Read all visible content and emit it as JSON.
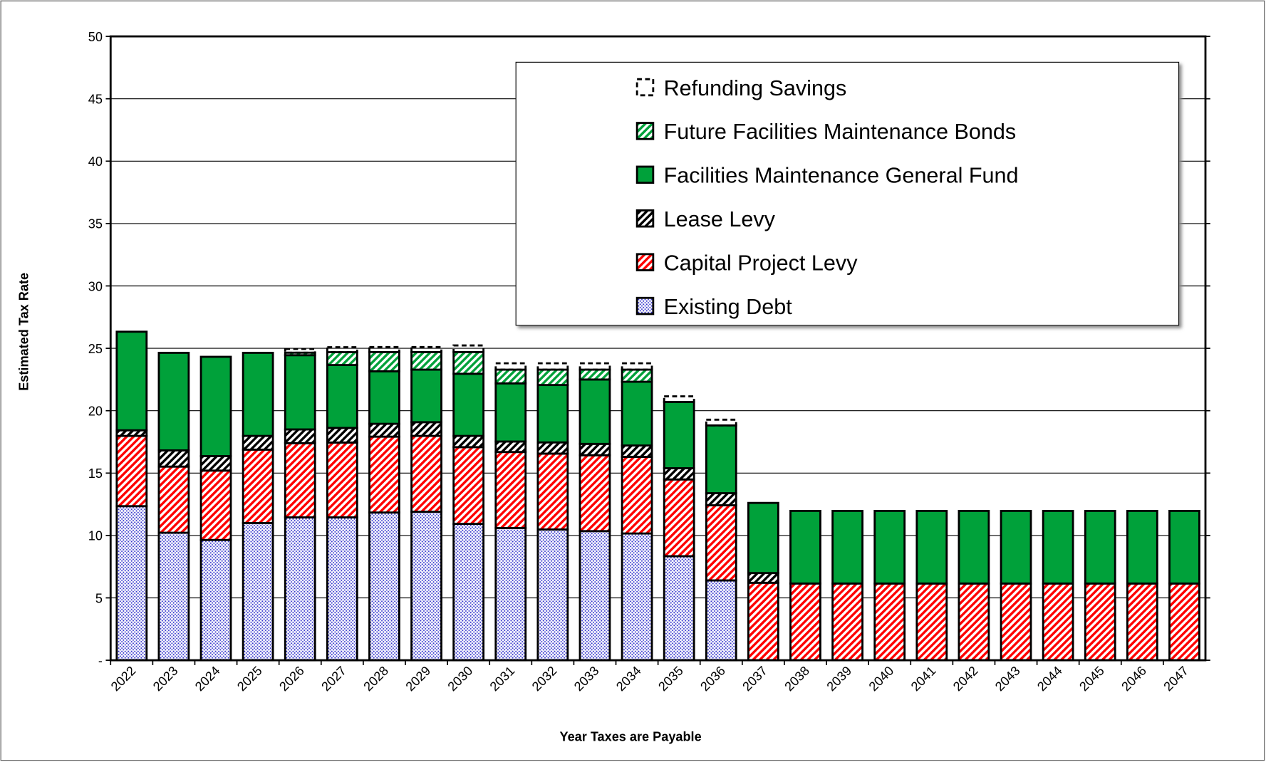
{
  "chart_data": {
    "type": "stacked_bar",
    "x_label": "Year Taxes are Payable",
    "y_label": "Estimated Tax Rate",
    "categories": [
      "2022",
      "2023",
      "2024",
      "2025",
      "2026",
      "2027",
      "2028",
      "2029",
      "2030",
      "2031",
      "2032",
      "2033",
      "2034",
      "2035",
      "2036",
      "2037",
      "2038",
      "2039",
      "2040",
      "2041",
      "2042",
      "2043",
      "2044",
      "2045",
      "2046",
      "2047"
    ],
    "ylim": [
      0,
      50
    ],
    "yticks": [
      {
        "value": 0,
        "label": "-"
      },
      5,
      10,
      15,
      20,
      25,
      30,
      35,
      40,
      45,
      50
    ],
    "grid": true,
    "legend": "upper right",
    "series": [
      {
        "name": "Existing Debt",
        "color": "#3333cc",
        "pattern": "dots",
        "values": [
          12.35,
          10.22,
          9.64,
          11.0,
          11.45,
          11.45,
          11.84,
          11.9,
          10.93,
          10.6,
          10.48,
          10.35,
          10.16,
          8.34,
          6.4,
          0,
          0,
          0,
          0,
          0,
          0,
          0,
          0,
          0,
          0,
          0
        ]
      },
      {
        "name": "Capital Project Levy",
        "color": "#ff0000",
        "pattern": "hatch",
        "values": [
          5.63,
          5.3,
          5.56,
          5.88,
          5.95,
          6.0,
          6.08,
          6.08,
          6.15,
          6.09,
          6.08,
          6.08,
          6.14,
          6.15,
          6.02,
          6.21,
          6.15,
          6.15,
          6.15,
          6.15,
          6.15,
          6.15,
          6.15,
          6.15,
          6.15,
          6.15
        ]
      },
      {
        "name": "Lease Levy",
        "color": "#000000",
        "pattern": "hatch",
        "values": [
          0.45,
          1.3,
          1.16,
          1.1,
          1.1,
          1.17,
          1.03,
          1.1,
          0.9,
          0.84,
          0.9,
          0.91,
          0.91,
          0.9,
          0.97,
          0.78,
          0,
          0,
          0,
          0,
          0,
          0,
          0,
          0,
          0,
          0
        ]
      },
      {
        "name": "Facilities Maintenance General Fund",
        "color": "#00a13a",
        "pattern": "solid",
        "values": [
          7.9,
          7.82,
          7.96,
          6.66,
          5.95,
          5.04,
          4.21,
          4.21,
          4.98,
          4.66,
          4.6,
          5.16,
          5.11,
          5.31,
          5.43,
          5.62,
          5.82,
          5.82,
          5.82,
          5.82,
          5.82,
          5.82,
          5.82,
          5.82,
          5.82,
          5.82
        ]
      },
      {
        "name": "Future Facilities Maintenance Bonds",
        "color": "#00a13a",
        "pattern": "hatch",
        "values": [
          0,
          0,
          0,
          0,
          0.2,
          1.03,
          1.54,
          1.41,
          1.74,
          1.1,
          1.23,
          0.79,
          0.97,
          0,
          0,
          0,
          0,
          0,
          0,
          0,
          0,
          0,
          0,
          0,
          0,
          0
        ]
      },
      {
        "name": "Refunding Savings",
        "color": "#000000",
        "pattern": "outline",
        "values": [
          0,
          0,
          0,
          0,
          0.3,
          0.4,
          0.4,
          0.4,
          0.53,
          0.51,
          0.51,
          0.51,
          0.51,
          0.45,
          0.46,
          0,
          0,
          0,
          0,
          0,
          0,
          0,
          0,
          0,
          0,
          0
        ]
      }
    ]
  }
}
